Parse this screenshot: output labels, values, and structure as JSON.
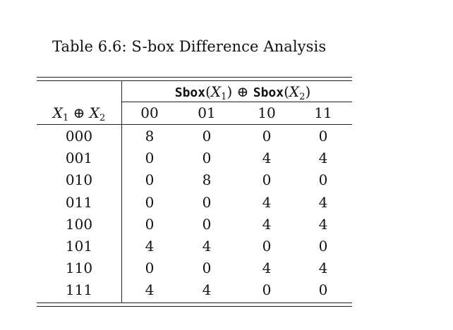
{
  "caption": "Table 6.6: S-box Difference Analysis",
  "header": {
    "group_mono_1": "Sbox",
    "group_x1": "X",
    "group_x1_sub": "1",
    "group_oplus": "⊕",
    "group_mono_2": "Sbox",
    "group_x2": "X",
    "group_x2_sub": "2",
    "row_x1": "X",
    "row_x1_sub": "1",
    "row_oplus": "⊕",
    "row_x2": "X",
    "row_x2_sub": "2",
    "columns": [
      "00",
      "01",
      "10",
      "11"
    ]
  },
  "rows": [
    {
      "label": "000",
      "values": [
        "8",
        "0",
        "0",
        "0"
      ]
    },
    {
      "label": "001",
      "values": [
        "0",
        "0",
        "4",
        "4"
      ]
    },
    {
      "label": "010",
      "values": [
        "0",
        "8",
        "0",
        "0"
      ]
    },
    {
      "label": "011",
      "values": [
        "0",
        "0",
        "4",
        "4"
      ]
    },
    {
      "label": "100",
      "values": [
        "0",
        "0",
        "4",
        "4"
      ]
    },
    {
      "label": "101",
      "values": [
        "4",
        "4",
        "0",
        "0"
      ]
    },
    {
      "label": "110",
      "values": [
        "0",
        "0",
        "4",
        "4"
      ]
    },
    {
      "label": "111",
      "values": [
        "4",
        "4",
        "0",
        "0"
      ]
    }
  ]
}
